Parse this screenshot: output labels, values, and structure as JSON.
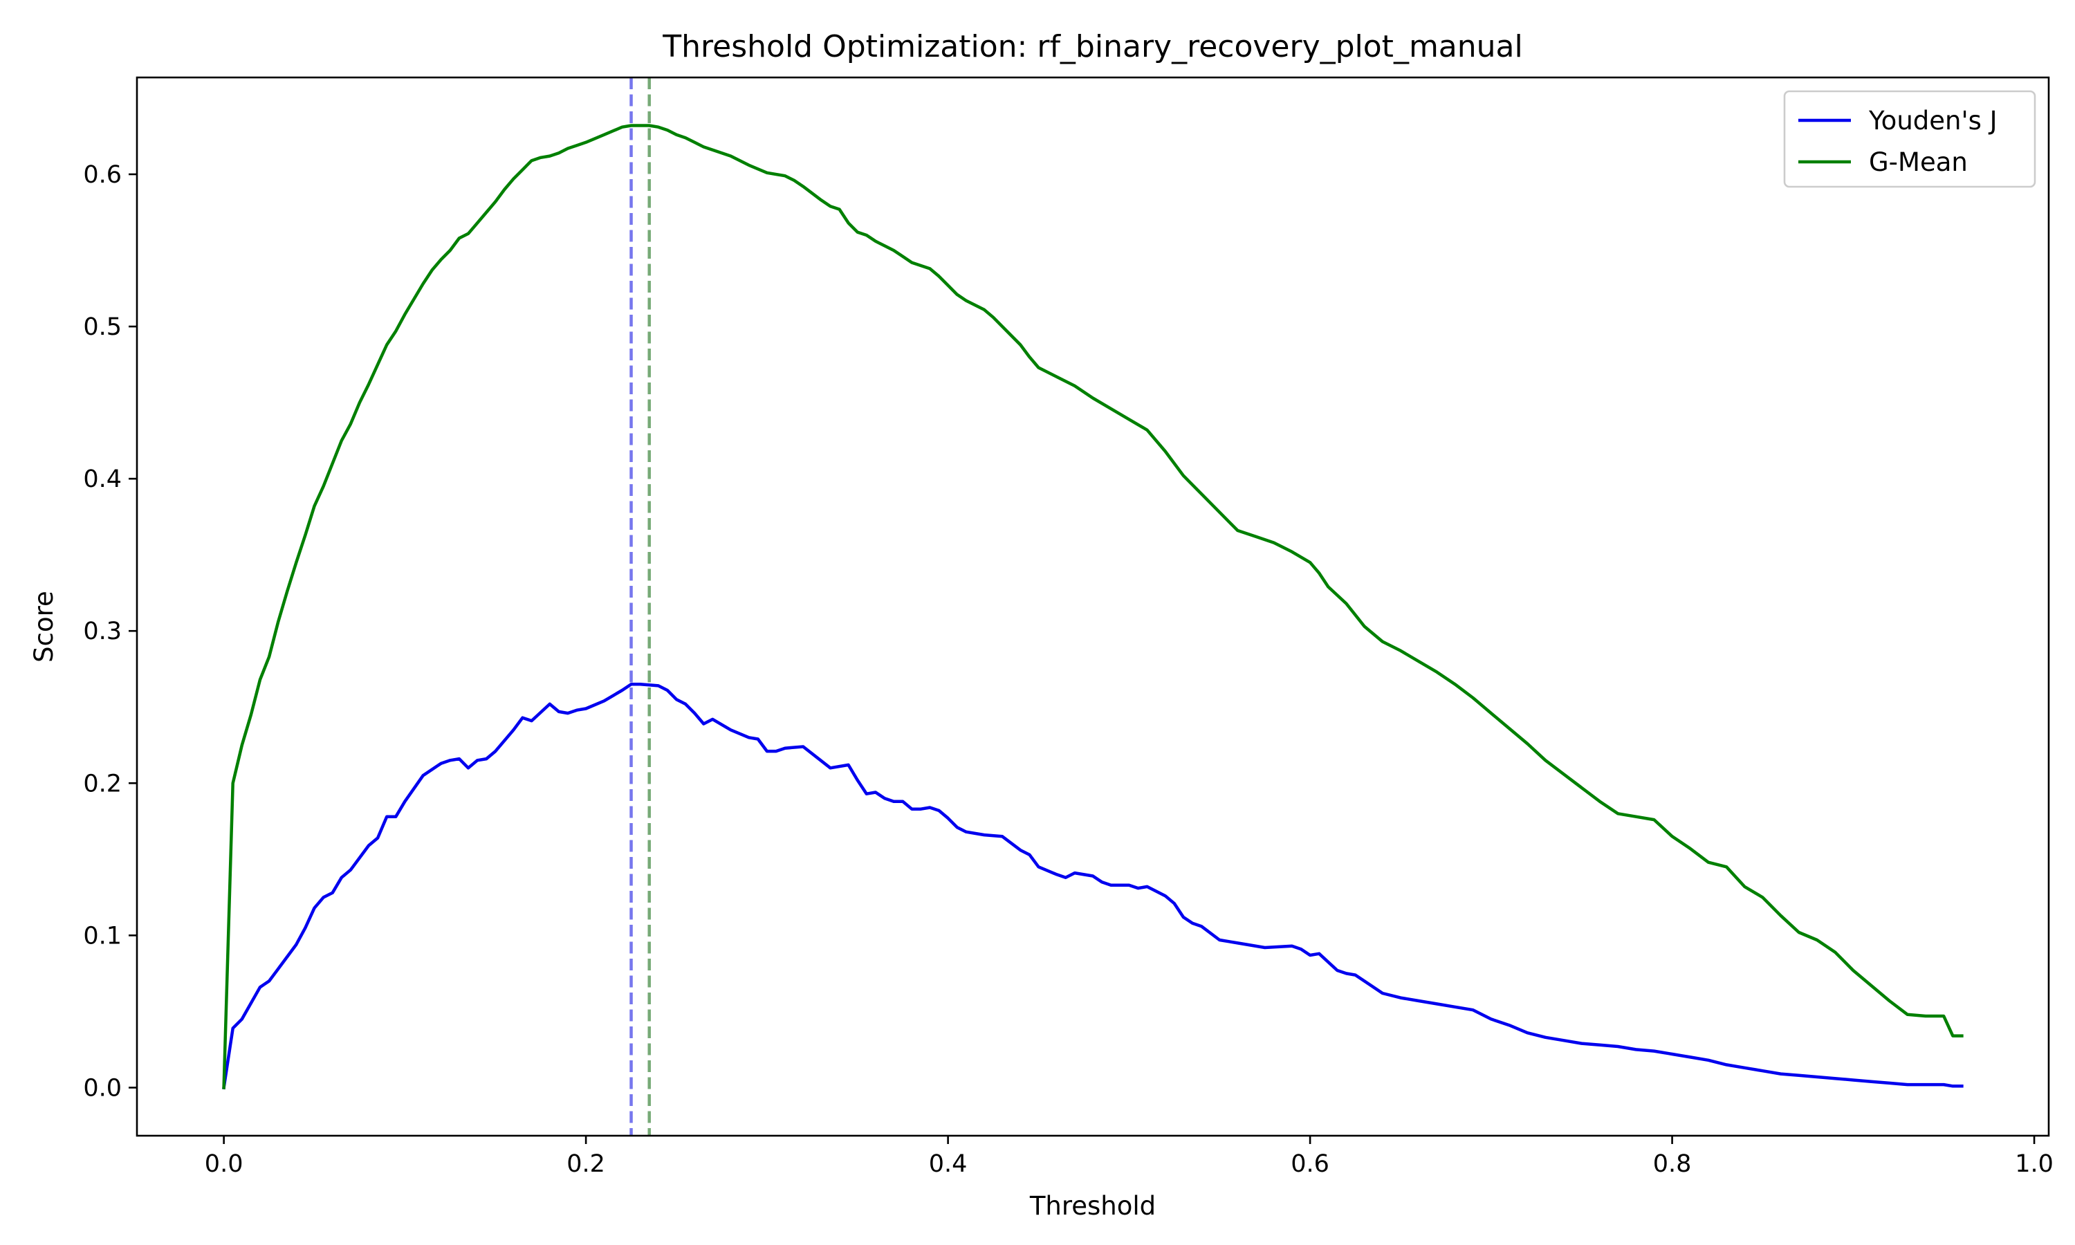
{
  "chart_data": {
    "type": "line",
    "title": "Threshold Optimization: rf_binary_recovery_plot_manual",
    "xlabel": "Threshold",
    "ylabel": "Score",
    "xlim": [
      -0.048,
      1.008
    ],
    "ylim": [
      -0.0316,
      0.6636
    ],
    "xticks": [
      "0.0",
      "0.2",
      "0.4",
      "0.6",
      "0.8",
      "1.0"
    ],
    "yticks": [
      "0.0",
      "0.1",
      "0.2",
      "0.3",
      "0.4",
      "0.5",
      "0.6"
    ],
    "grid": false,
    "legend_position": "top-right",
    "optimal_thresholds": [
      {
        "x": 0.225,
        "color": "#7777ee"
      },
      {
        "x": 0.235,
        "color": "#77aa77"
      }
    ],
    "series": [
      {
        "name": "Youden's J",
        "color": "#0000ee",
        "x": [
          0.0,
          0.005,
          0.01,
          0.02,
          0.025,
          0.03,
          0.04,
          0.045,
          0.05,
          0.055,
          0.06,
          0.065,
          0.07,
          0.08,
          0.085,
          0.09,
          0.095,
          0.1,
          0.11,
          0.115,
          0.12,
          0.125,
          0.13,
          0.135,
          0.14,
          0.145,
          0.15,
          0.16,
          0.165,
          0.17,
          0.18,
          0.185,
          0.19,
          0.195,
          0.2,
          0.21,
          0.22,
          0.225,
          0.23,
          0.24,
          0.245,
          0.25,
          0.255,
          0.26,
          0.265,
          0.27,
          0.28,
          0.29,
          0.295,
          0.3,
          0.305,
          0.31,
          0.32,
          0.335,
          0.345,
          0.35,
          0.355,
          0.36,
          0.365,
          0.37,
          0.375,
          0.38,
          0.385,
          0.39,
          0.395,
          0.4,
          0.405,
          0.41,
          0.42,
          0.43,
          0.44,
          0.445,
          0.45,
          0.46,
          0.465,
          0.47,
          0.48,
          0.485,
          0.49,
          0.5,
          0.505,
          0.51,
          0.52,
          0.525,
          0.53,
          0.535,
          0.54,
          0.55,
          0.56,
          0.575,
          0.59,
          0.595,
          0.6,
          0.605,
          0.615,
          0.62,
          0.625,
          0.63,
          0.64,
          0.65,
          0.66,
          0.67,
          0.68,
          0.69,
          0.7,
          0.71,
          0.72,
          0.73,
          0.74,
          0.75,
          0.76,
          0.77,
          0.78,
          0.79,
          0.8,
          0.81,
          0.82,
          0.83,
          0.84,
          0.85,
          0.86,
          0.87,
          0.88,
          0.89,
          0.9,
          0.91,
          0.92,
          0.93,
          0.94,
          0.95,
          0.955,
          0.96
        ],
        "y": [
          0.0,
          0.039,
          0.045,
          0.066,
          0.07,
          0.078,
          0.094,
          0.105,
          0.118,
          0.125,
          0.128,
          0.138,
          0.143,
          0.159,
          0.164,
          0.178,
          0.178,
          0.188,
          0.205,
          0.209,
          0.213,
          0.215,
          0.216,
          0.21,
          0.215,
          0.216,
          0.221,
          0.235,
          0.243,
          0.241,
          0.252,
          0.247,
          0.246,
          0.248,
          0.249,
          0.254,
          0.261,
          0.265,
          0.265,
          0.264,
          0.261,
          0.255,
          0.252,
          0.246,
          0.239,
          0.242,
          0.235,
          0.23,
          0.229,
          0.221,
          0.221,
          0.223,
          0.224,
          0.21,
          0.212,
          0.202,
          0.193,
          0.194,
          0.19,
          0.188,
          0.188,
          0.183,
          0.183,
          0.184,
          0.182,
          0.177,
          0.171,
          0.168,
          0.166,
          0.165,
          0.156,
          0.153,
          0.145,
          0.14,
          0.138,
          0.141,
          0.139,
          0.135,
          0.133,
          0.133,
          0.131,
          0.132,
          0.126,
          0.121,
          0.112,
          0.108,
          0.106,
          0.097,
          0.095,
          0.092,
          0.093,
          0.091,
          0.087,
          0.088,
          0.077,
          0.075,
          0.074,
          0.07,
          0.062,
          0.059,
          0.057,
          0.055,
          0.053,
          0.051,
          0.045,
          0.041,
          0.036,
          0.033,
          0.031,
          0.029,
          0.028,
          0.027,
          0.025,
          0.024,
          0.022,
          0.02,
          0.018,
          0.015,
          0.013,
          0.011,
          0.009,
          0.008,
          0.007,
          0.006,
          0.005,
          0.004,
          0.003,
          0.002,
          0.002,
          0.002,
          0.001,
          0.001
        ]
      },
      {
        "name": "G-Mean",
        "color": "#008000",
        "x": [
          0.0,
          0.005,
          0.01,
          0.015,
          0.02,
          0.025,
          0.03,
          0.035,
          0.04,
          0.045,
          0.05,
          0.055,
          0.06,
          0.065,
          0.07,
          0.075,
          0.08,
          0.085,
          0.09,
          0.095,
          0.1,
          0.105,
          0.11,
          0.115,
          0.12,
          0.125,
          0.13,
          0.135,
          0.14,
          0.145,
          0.15,
          0.155,
          0.16,
          0.165,
          0.17,
          0.175,
          0.18,
          0.185,
          0.19,
          0.195,
          0.2,
          0.21,
          0.22,
          0.225,
          0.23,
          0.235,
          0.24,
          0.245,
          0.25,
          0.255,
          0.26,
          0.265,
          0.27,
          0.28,
          0.29,
          0.3,
          0.31,
          0.315,
          0.32,
          0.33,
          0.335,
          0.34,
          0.345,
          0.35,
          0.355,
          0.36,
          0.365,
          0.37,
          0.375,
          0.38,
          0.39,
          0.395,
          0.4,
          0.405,
          0.41,
          0.42,
          0.425,
          0.43,
          0.44,
          0.445,
          0.45,
          0.46,
          0.47,
          0.48,
          0.49,
          0.5,
          0.51,
          0.52,
          0.53,
          0.54,
          0.55,
          0.56,
          0.57,
          0.58,
          0.59,
          0.6,
          0.605,
          0.61,
          0.62,
          0.63,
          0.64,
          0.65,
          0.66,
          0.67,
          0.68,
          0.69,
          0.7,
          0.71,
          0.72,
          0.73,
          0.74,
          0.75,
          0.76,
          0.77,
          0.78,
          0.79,
          0.8,
          0.81,
          0.82,
          0.83,
          0.84,
          0.85,
          0.86,
          0.87,
          0.88,
          0.89,
          0.9,
          0.91,
          0.92,
          0.93,
          0.94,
          0.95,
          0.955,
          0.96
        ],
        "y": [
          0.0,
          0.2,
          0.225,
          0.245,
          0.268,
          0.283,
          0.306,
          0.326,
          0.345,
          0.363,
          0.382,
          0.395,
          0.41,
          0.425,
          0.436,
          0.45,
          0.462,
          0.475,
          0.488,
          0.497,
          0.508,
          0.518,
          0.528,
          0.537,
          0.544,
          0.55,
          0.558,
          0.561,
          0.568,
          0.575,
          0.582,
          0.59,
          0.597,
          0.603,
          0.609,
          0.611,
          0.612,
          0.614,
          0.617,
          0.619,
          0.621,
          0.626,
          0.631,
          0.632,
          0.632,
          0.632,
          0.631,
          0.629,
          0.626,
          0.624,
          0.621,
          0.618,
          0.616,
          0.612,
          0.606,
          0.601,
          0.599,
          0.596,
          0.592,
          0.583,
          0.579,
          0.577,
          0.568,
          0.562,
          0.56,
          0.556,
          0.553,
          0.55,
          0.546,
          0.542,
          0.538,
          0.533,
          0.527,
          0.521,
          0.517,
          0.511,
          0.506,
          0.5,
          0.488,
          0.48,
          0.473,
          0.467,
          0.461,
          0.453,
          0.446,
          0.439,
          0.432,
          0.418,
          0.402,
          0.39,
          0.378,
          0.366,
          0.362,
          0.358,
          0.352,
          0.345,
          0.338,
          0.329,
          0.318,
          0.303,
          0.293,
          0.287,
          0.28,
          0.273,
          0.265,
          0.256,
          0.246,
          0.236,
          0.226,
          0.215,
          0.206,
          0.197,
          0.188,
          0.18,
          0.178,
          0.176,
          0.165,
          0.157,
          0.148,
          0.145,
          0.132,
          0.125,
          0.113,
          0.102,
          0.097,
          0.089,
          0.077,
          0.067,
          0.057,
          0.048,
          0.047,
          0.047,
          0.034,
          0.034
        ]
      }
    ]
  }
}
